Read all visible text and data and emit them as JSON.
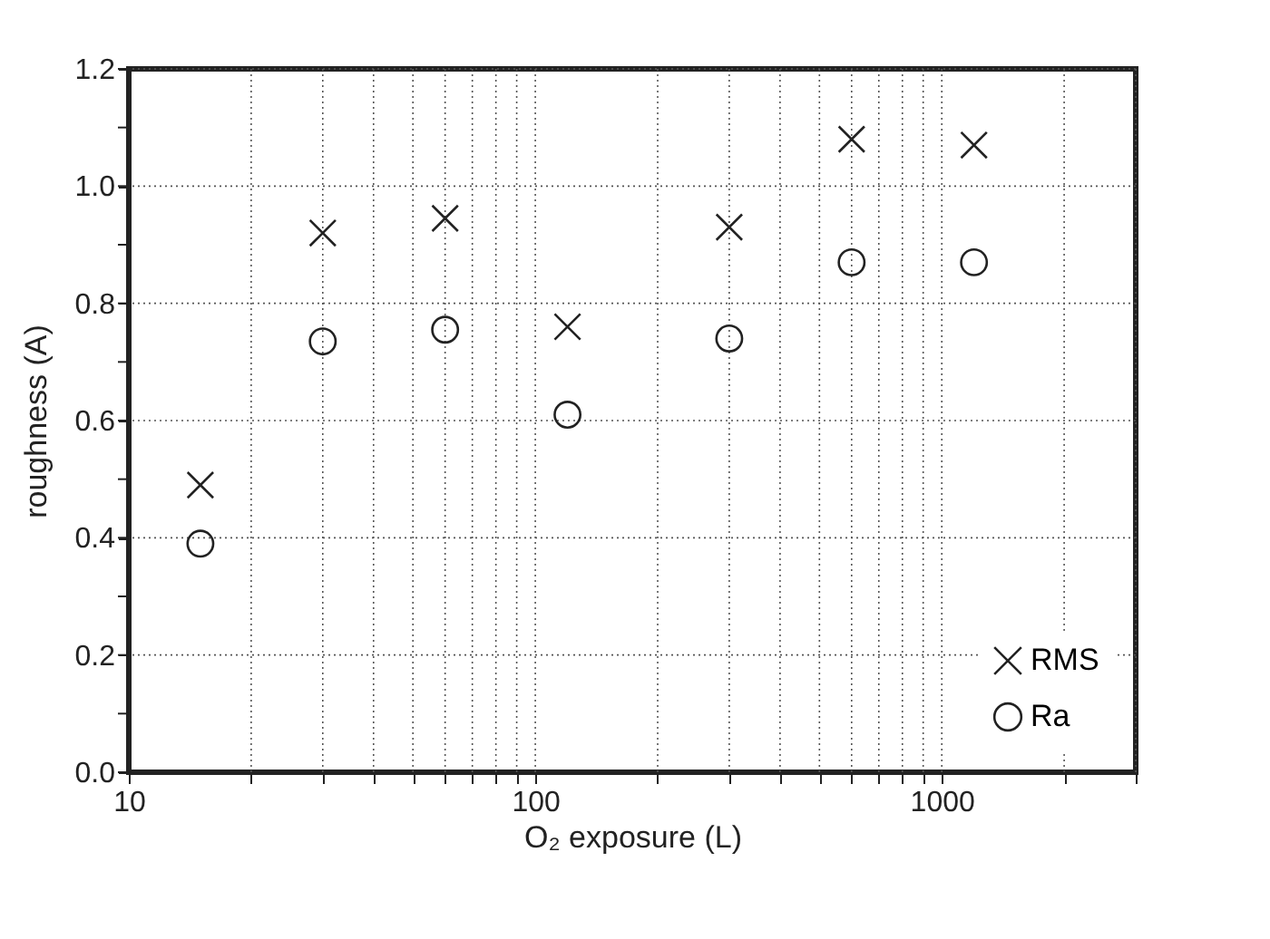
{
  "chart_data": {
    "type": "scatter",
    "xlabel": "O₂ exposure (L)",
    "ylabel": "roughness (A)",
    "x": [
      15,
      30,
      60,
      120,
      300,
      600,
      1200
    ],
    "series": [
      {
        "name": "RMS",
        "color": "#222222",
        "marker": "cross",
        "values": [
          0.49,
          0.92,
          0.945,
          0.76,
          0.93,
          1.08,
          1.07
        ]
      },
      {
        "name": "Ra",
        "color": "#222222",
        "marker": "circle",
        "values": [
          0.39,
          0.735,
          0.755,
          0.61,
          0.74,
          0.87,
          0.87
        ]
      }
    ],
    "log": "x",
    "xlim": [
      10,
      3000
    ],
    "ylim": [
      0,
      1.2
    ],
    "xticks": [
      10,
      {
        "value": 20,
        "label": null
      },
      {
        "value": 30,
        "label": null
      },
      {
        "value": 40,
        "label": null
      },
      {
        "value": 50,
        "label": null
      },
      {
        "value": 60,
        "label": null
      },
      {
        "value": 70,
        "label": null
      },
      {
        "value": 80,
        "label": null
      },
      {
        "value": 90,
        "label": null
      },
      100,
      {
        "value": 200,
        "label": null
      },
      {
        "value": 300,
        "label": null
      },
      {
        "value": 400,
        "label": null
      },
      {
        "value": 500,
        "label": null
      },
      {
        "value": 600,
        "label": null
      },
      {
        "value": 700,
        "label": null
      },
      {
        "value": 800,
        "label": null
      },
      {
        "value": 900,
        "label": null
      },
      1000,
      {
        "value": 2000,
        "label": null
      },
      {
        "value": 3000,
        "label": null
      }
    ],
    "yticks": [
      {
        "value": 0,
        "label": "0.0"
      },
      {
        "value": 0.1,
        "label": null
      },
      0.2,
      {
        "value": 0.3,
        "label": null
      },
      0.4,
      {
        "value": 0.5,
        "label": null
      },
      0.6,
      {
        "value": 0.7,
        "label": null
      },
      0.8,
      {
        "value": 0.9,
        "label": null
      },
      {
        "value": 1.0,
        "label": "1.0"
      },
      {
        "value": 1.1,
        "label": null
      },
      1.2
    ],
    "grid": true,
    "legend": "bottom right"
  }
}
